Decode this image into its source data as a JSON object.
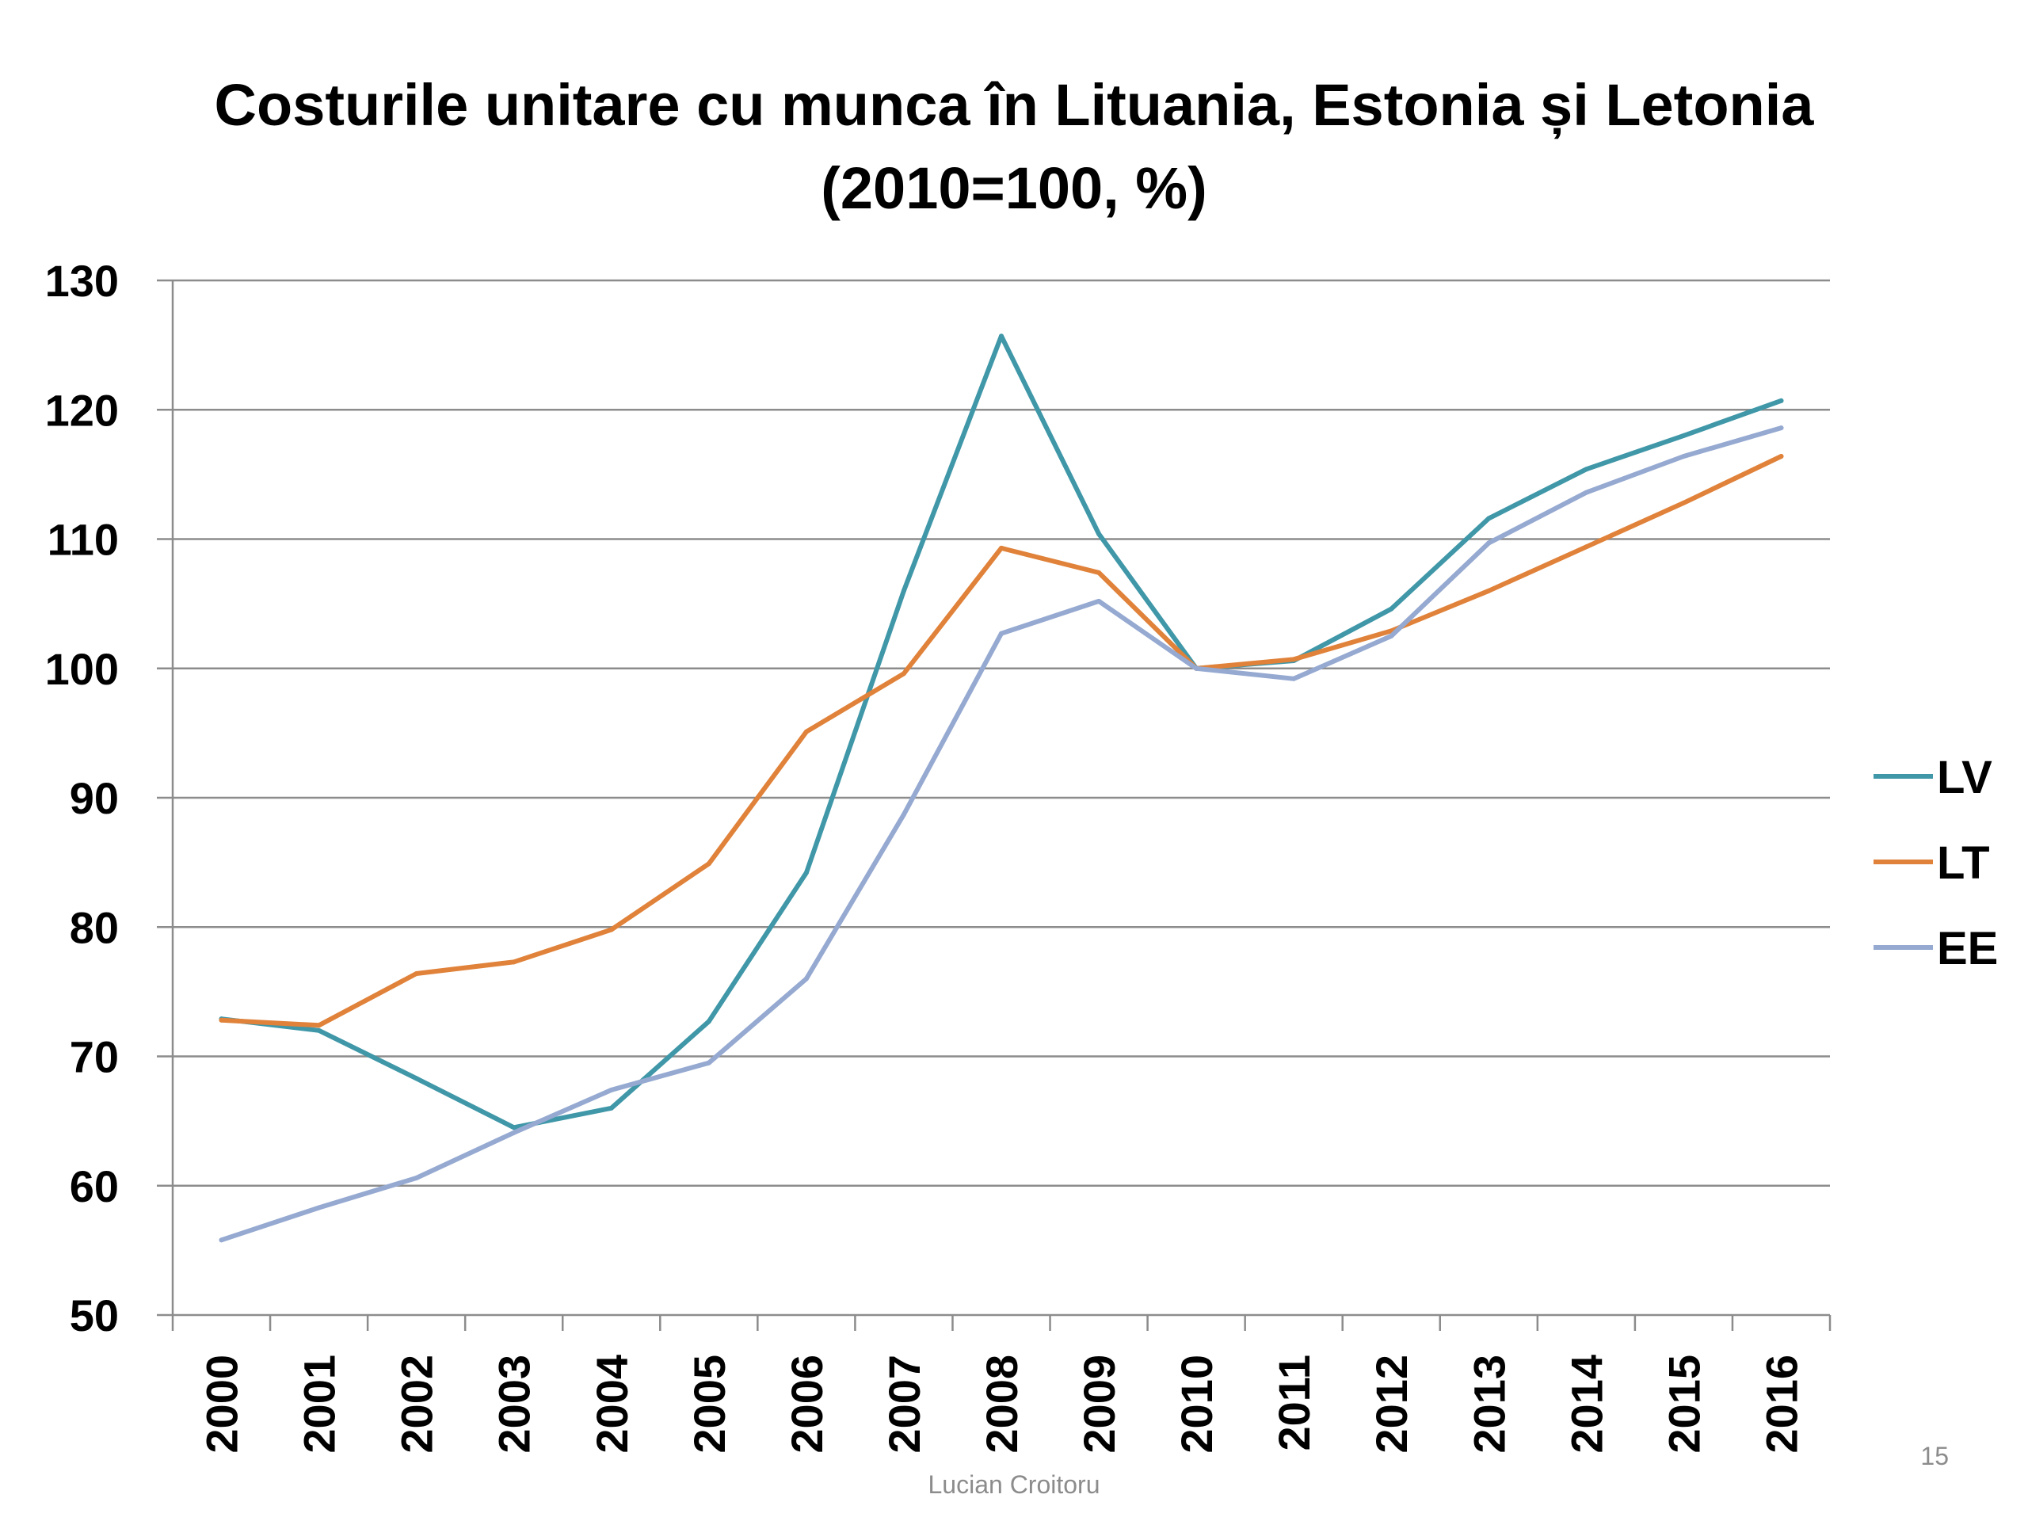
{
  "slide": {
    "footer_author": "Lucian Croitoru",
    "page_number": "15"
  },
  "chart_data": {
    "type": "line",
    "title_lines": [
      "Costurile unitare cu munca în Lituania, Estonia și Letonia",
      "(2010=100, %)"
    ],
    "xlabel": "",
    "ylabel": "",
    "categories": [
      "2000",
      "2001",
      "2002",
      "2003",
      "2004",
      "2005",
      "2006",
      "2007",
      "2008",
      "2009",
      "2010",
      "2011",
      "2012",
      "2013",
      "2014",
      "2015",
      "2016"
    ],
    "ylim": [
      50,
      130
    ],
    "yticks": [
      50,
      60,
      70,
      80,
      90,
      100,
      110,
      120,
      130
    ],
    "grid": true,
    "legend_position": "right",
    "series": [
      {
        "name": "LV",
        "color": "#3f97a8",
        "values": [
          72.9,
          72.0,
          68.3,
          64.5,
          66.0,
          72.7,
          84.2,
          106.0,
          125.7,
          110.4,
          100.0,
          100.6,
          104.6,
          111.6,
          115.4,
          118.0,
          120.7
        ]
      },
      {
        "name": "LT",
        "color": "#e0823a",
        "values": [
          72.8,
          72.4,
          76.4,
          77.3,
          79.8,
          84.9,
          95.1,
          99.6,
          109.3,
          107.4,
          100.0,
          100.7,
          102.9,
          106.0,
          109.4,
          112.8,
          116.4
        ]
      },
      {
        "name": "EE",
        "color": "#95a9d1",
        "values": [
          55.8,
          58.3,
          60.6,
          64.1,
          67.4,
          69.5,
          76.0,
          88.7,
          102.7,
          105.2,
          100.0,
          99.2,
          102.5,
          109.7,
          113.6,
          116.4,
          118.6
        ]
      }
    ]
  }
}
